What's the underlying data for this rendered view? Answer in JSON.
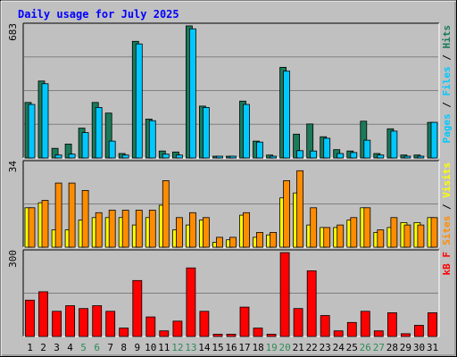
{
  "chart_data": {
    "type": "bar",
    "title": "Daily usage for July 2025",
    "categories": [
      "1",
      "2",
      "3",
      "4",
      "5",
      "6",
      "7",
      "8",
      "9",
      "10",
      "11",
      "12",
      "13",
      "14",
      "15",
      "16",
      "17",
      "18",
      "19",
      "20",
      "21",
      "22",
      "23",
      "24",
      "25",
      "26",
      "27",
      "28",
      "29",
      "30",
      "31"
    ],
    "weekend_days": [
      "5",
      "6",
      "12",
      "13",
      "19",
      "20",
      "26",
      "27"
    ],
    "panels": [
      {
        "max_label": "683",
        "ylim": [
          0,
          683
        ],
        "legend": [
          "Pages",
          "/",
          "Files",
          "/",
          "Hits"
        ],
        "series": [
          {
            "name": "Hits",
            "color": "#1a7a5a",
            "values": [
              287,
              398,
              50,
              72,
              154,
              287,
              232,
              23,
              603,
              201,
              36,
              31,
              683,
              268,
              8,
              8,
              294,
              87,
              15,
              469,
              123,
              176,
              110,
              43,
              36,
              190,
              23,
              151,
              15,
              15,
              184
            ]
          },
          {
            "name": "Files",
            "color": "#00c8ff",
            "values": [
              277,
              384,
              15,
              20,
              131,
              261,
              87,
              15,
              590,
              193,
              20,
              15,
              668,
              261,
              8,
              8,
              277,
              82,
              8,
              449,
              38,
              36,
              102,
              23,
              28,
              92,
              15,
              139,
              8,
              8,
              184
            ]
          },
          {
            "name": "Pages",
            "color": "#00c8ff",
            "values": [
              0,
              0,
              0,
              0,
              0,
              0,
              0,
              0,
              0,
              0,
              0,
              0,
              0,
              0,
              0,
              0,
              0,
              0,
              0,
              0,
              0,
              0,
              0,
              0,
              0,
              0,
              0,
              0,
              0,
              0,
              0
            ]
          }
        ]
      },
      {
        "max_label": "34",
        "ylim": [
          0,
          34
        ],
        "legend": [
          "Sites",
          "/",
          "Visits"
        ],
        "series": [
          {
            "name": "Visits",
            "color": "#ffff00",
            "values": [
              16,
              18,
              7,
              7,
              11,
              12,
              12,
              12,
              9,
              12,
              17,
              7,
              9,
              11,
              2,
              3,
              13,
              4,
              5,
              20,
              22,
              9,
              8,
              8,
              11,
              16,
              6,
              8,
              10,
              10,
              12
            ]
          },
          {
            "name": "Sites",
            "color": "#ff8c00",
            "values": [
              16,
              19,
              26,
              26,
              23,
              14,
              15,
              15,
              15,
              15,
              27,
              12,
              14,
              12,
              4,
              4,
              14,
              6,
              6,
              27,
              31,
              16,
              8,
              9,
              12,
              16,
              7,
              12,
              9,
              9,
              12
            ]
          }
        ]
      },
      {
        "max_label": "300",
        "ylim": [
          0,
          300
        ],
        "legend": [
          "kB F"
        ],
        "series": [
          {
            "name": "kB F",
            "color": "#ff0000",
            "values": [
              130,
              160,
              90,
              110,
              100,
              110,
              90,
              30,
              200,
              70,
              20,
              55,
              245,
              90,
              8,
              8,
              105,
              30,
              8,
              300,
              100,
              235,
              75,
              20,
              50,
              90,
              20,
              85,
              10,
              40,
              85
            ]
          }
        ]
      }
    ]
  }
}
